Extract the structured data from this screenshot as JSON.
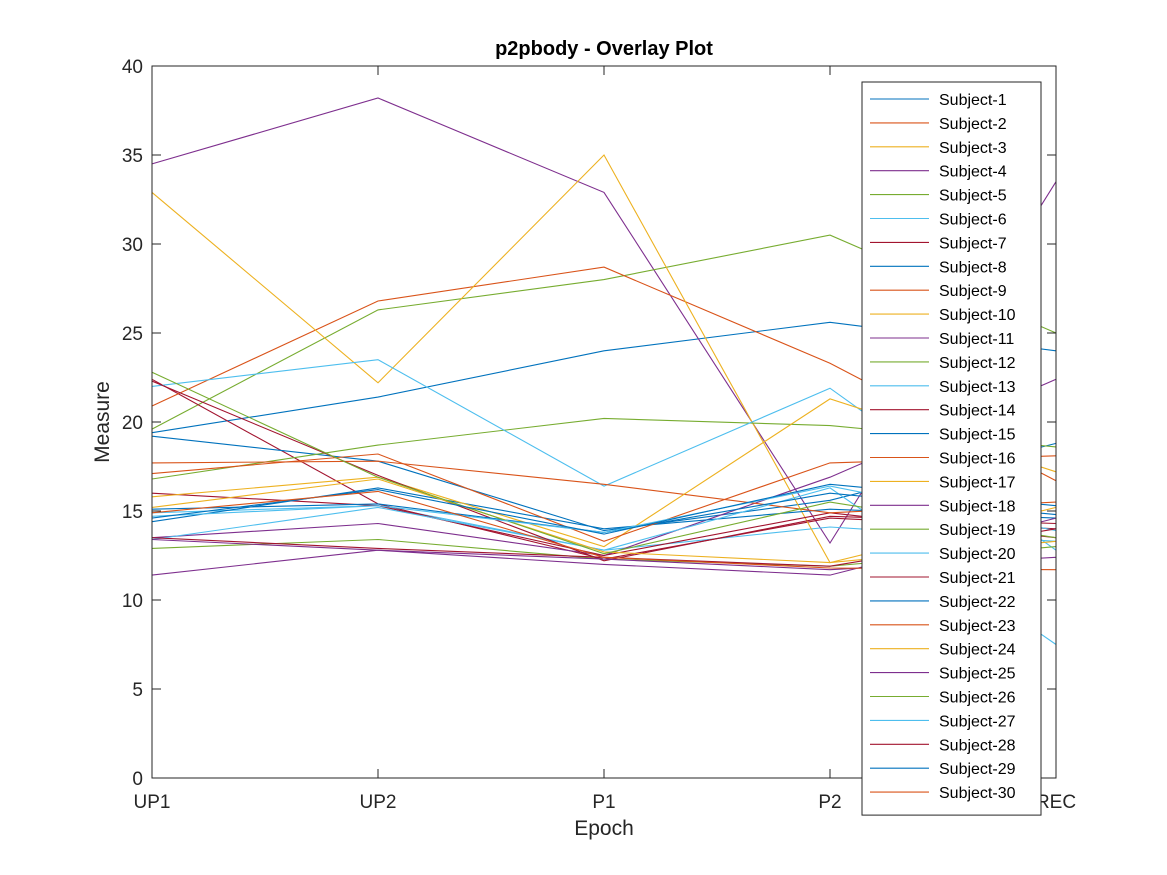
{
  "chart_data": {
    "type": "line",
    "title": "p2pbody - Overlay Plot",
    "xlabel": "Epoch",
    "ylabel": "Measure",
    "categories": [
      "UP1",
      "UP2",
      "P1",
      "P2",
      "REC"
    ],
    "ylim": [
      0,
      40
    ],
    "yticks": [
      0,
      5,
      10,
      15,
      20,
      25,
      30,
      35,
      40
    ],
    "grid": false,
    "legend_position": "right, overlapping plot",
    "colors": [
      "#0072BD",
      "#D95319",
      "#EDB120",
      "#7E2F8E",
      "#77AC30",
      "#4DBEEE",
      "#A2142F"
    ],
    "series": [
      {
        "name": "Subject-1",
        "values": [
          19.4,
          21.4,
          24.0,
          25.6,
          24.0
        ]
      },
      {
        "name": "Subject-2",
        "values": [
          0,
          0,
          0,
          0,
          0
        ]
      },
      {
        "name": "Subject-3",
        "values": [
          0,
          0,
          0,
          0,
          0
        ]
      },
      {
        "name": "Subject-4",
        "values": [
          34.5,
          38.2,
          32.9,
          13.2,
          33.5
        ]
      },
      {
        "name": "Subject-5",
        "values": [
          19.6,
          26.3,
          28.0,
          30.5,
          25.0
        ]
      },
      {
        "name": "Subject-6",
        "values": [
          14.9,
          15.3,
          12.8,
          14.1,
          13.3
        ]
      },
      {
        "name": "Subject-7",
        "values": [
          22.4,
          15.4,
          12.3,
          14.6,
          14.0
        ]
      },
      {
        "name": "Subject-8",
        "values": [
          19.2,
          17.8,
          13.9,
          15.6,
          18.8
        ]
      },
      {
        "name": "Subject-9",
        "values": [
          20.9,
          26.8,
          28.7,
          23.3,
          16.7
        ]
      },
      {
        "name": "Subject-10",
        "values": [
          32.9,
          22.2,
          35.0,
          12.1,
          15.2
        ]
      },
      {
        "name": "Subject-11",
        "values": [
          13.5,
          14.3,
          12.5,
          16.9,
          22.4
        ]
      },
      {
        "name": "Subject-12",
        "values": [
          16.8,
          18.7,
          20.2,
          19.8,
          18.6
        ]
      },
      {
        "name": "Subject-13",
        "values": [
          22.0,
          23.5,
          16.4,
          21.9,
          12.8
        ]
      },
      {
        "name": "Subject-14",
        "values": [
          16.0,
          15.3,
          12.5,
          14.9,
          13.5
        ]
      },
      {
        "name": "Subject-15",
        "values": [
          14.4,
          16.3,
          14.0,
          15.1,
          14.6
        ]
      },
      {
        "name": "Subject-16",
        "values": [
          17.7,
          17.8,
          16.5,
          14.9,
          15.5
        ]
      },
      {
        "name": "Subject-17",
        "values": [
          15.8,
          16.9,
          13.0,
          21.3,
          17.2
        ]
      },
      {
        "name": "Subject-18",
        "values": [
          11.4,
          12.8,
          12.0,
          11.4,
          14.6
        ]
      },
      {
        "name": "Subject-19",
        "values": [
          12.9,
          13.4,
          12.3,
          11.9,
          13.0
        ]
      },
      {
        "name": "Subject-20",
        "values": [
          13.4,
          15.2,
          12.8,
          16.3,
          7.5
        ]
      },
      {
        "name": "Subject-21",
        "values": [
          22.3,
          17.0,
          12.2,
          14.7,
          14.3
        ]
      },
      {
        "name": "Subject-22",
        "values": [
          15.1,
          15.4,
          13.8,
          16.0,
          14.8
        ]
      },
      {
        "name": "Subject-23",
        "values": [
          17.1,
          18.2,
          13.3,
          17.7,
          18.1
        ]
      },
      {
        "name": "Subject-24",
        "values": [
          15.2,
          16.8,
          12.7,
          12.1,
          13.3
        ]
      },
      {
        "name": "Subject-25",
        "values": [
          13.4,
          12.8,
          12.3,
          11.7,
          12.4
        ]
      },
      {
        "name": "Subject-26",
        "values": [
          22.8,
          16.9,
          12.6,
          15.5,
          13.5
        ]
      },
      {
        "name": "Subject-27",
        "values": [
          14.7,
          15.3,
          13.8,
          16.4,
          13.9
        ]
      },
      {
        "name": "Subject-28",
        "values": [
          13.5,
          12.9,
          12.4,
          11.9,
          14.0
        ]
      },
      {
        "name": "Subject-29",
        "values": [
          14.6,
          16.2,
          13.7,
          16.5,
          15.3
        ]
      },
      {
        "name": "Subject-30",
        "values": [
          14.9,
          16.1,
          12.4,
          11.8,
          11.7
        ]
      }
    ]
  }
}
